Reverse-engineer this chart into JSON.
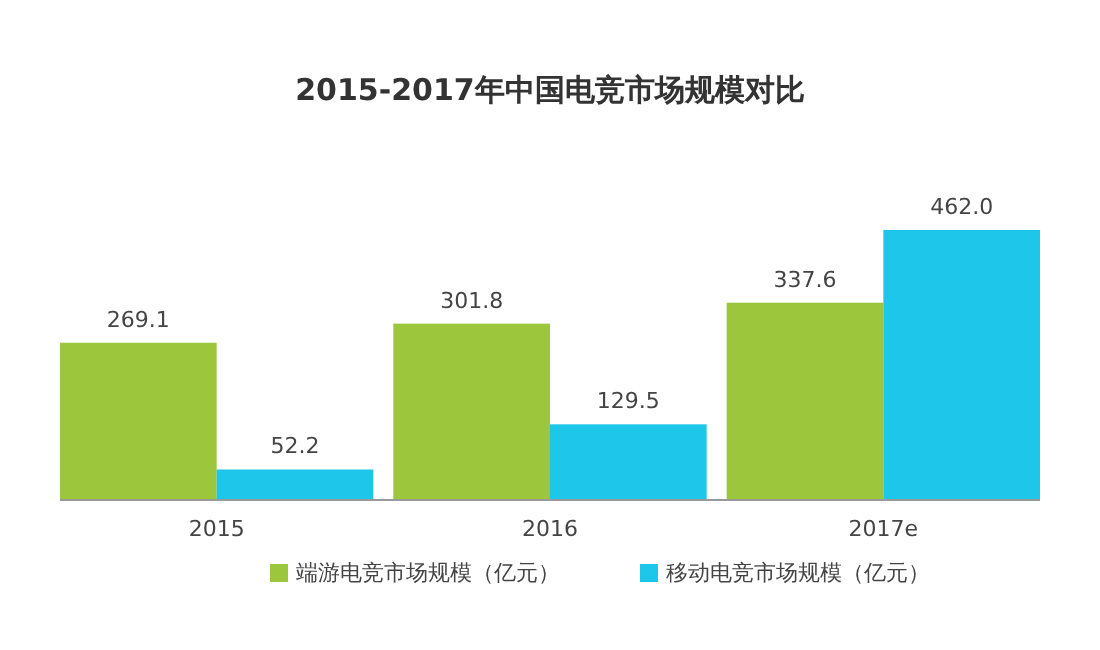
{
  "chart_data": {
    "type": "bar",
    "title": "2015-2017年中国电竞市场规模对比",
    "categories": [
      "2015",
      "2016",
      "2017e"
    ],
    "series": [
      {
        "name": "端游电竞市场规模（亿元）",
        "color": "#9cc63b",
        "values": [
          269.1,
          301.8,
          337.6
        ],
        "value_labels": [
          "269.1",
          "301.8",
          "337.6"
        ]
      },
      {
        "name": "移动电竞市场规模（亿元）",
        "color": "#1ec6ea",
        "values": [
          52.2,
          129.5,
          462.0
        ],
        "value_labels": [
          "52.2",
          "129.5",
          "462.0"
        ]
      }
    ],
    "legend": "bottom"
  }
}
